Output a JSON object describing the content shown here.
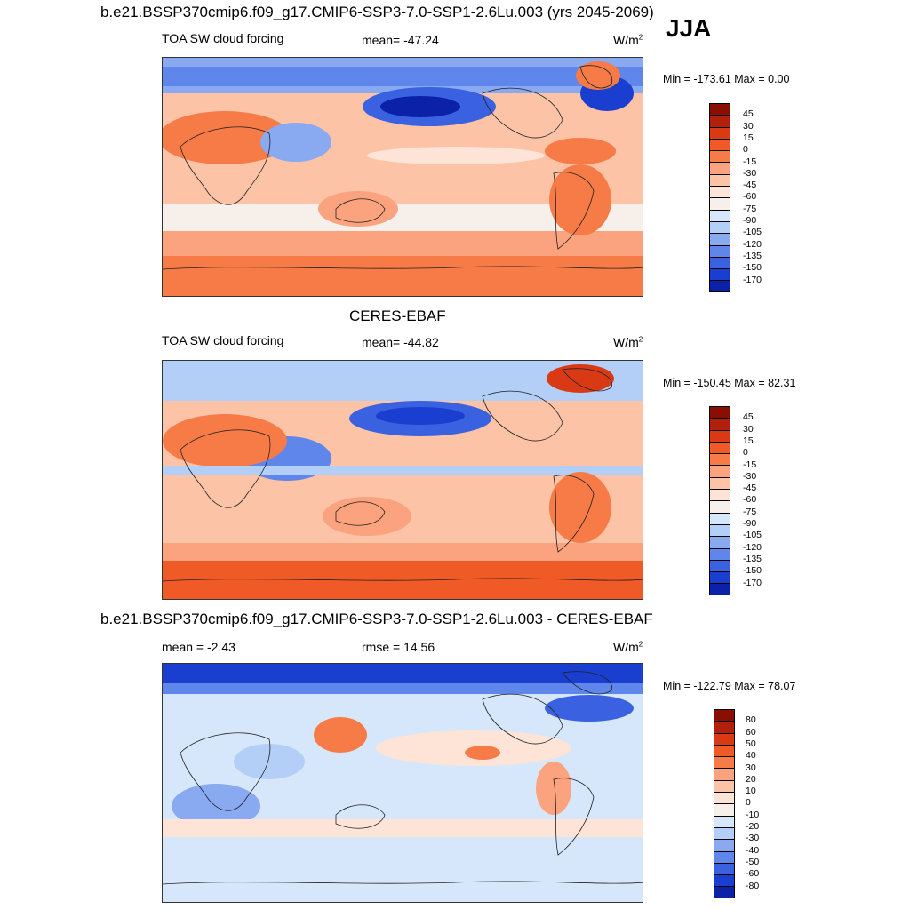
{
  "page": {
    "title_top": "b.e21.BSSP370cmip6.f09_g17.CMIP6-SSP3-7.0-SSP1-2.6Lu.003 (yrs 2045-2069)",
    "season": "JJA",
    "title_obs": "CERES-EBAF",
    "title_diff": "b.e21.BSSP370cmip6.f09_g17.CMIP6-SSP3-7.0-SSP1-2.6Lu.003 - CERES-EBAF"
  },
  "panels": [
    {
      "id": "model",
      "left_label": "TOA SW cloud forcing",
      "center_label": "mean= -47.24",
      "units": "W/m",
      "units_sup": "2",
      "minmax": "Min = -173.61 Max =   0.00"
    },
    {
      "id": "obs",
      "left_label": "TOA SW cloud forcing",
      "center_label": "mean= -44.82",
      "units": "W/m",
      "units_sup": "2",
      "minmax": "Min = -150.45 Max =  82.31"
    },
    {
      "id": "diff",
      "left_label": "mean =  -2.43",
      "center_label": "rmse =  14.56",
      "units": "W/m",
      "units_sup": "2",
      "minmax": "Min = -122.79 Max =  78.07"
    }
  ],
  "colorbars": {
    "field": {
      "labels": [
        "45",
        "30",
        "15",
        "0",
        "-15",
        "-30",
        "-45",
        "-60",
        "-75",
        "-90",
        "-105",
        "-120",
        "-135",
        "-150",
        "-170"
      ],
      "colors": [
        "#8b0e03",
        "#b2200b",
        "#d93a14",
        "#f05a26",
        "#f77b47",
        "#fba27e",
        "#fcc3a7",
        "#fde4d6",
        "#f6efea",
        "#d7e7fb",
        "#b3cef7",
        "#89a9f1",
        "#5f86ea",
        "#3a62e0",
        "#1a3ecf",
        "#0b21a8"
      ]
    },
    "diff": {
      "labels": [
        "80",
        "60",
        "50",
        "40",
        "30",
        "20",
        "10",
        "0",
        "-10",
        "-20",
        "-30",
        "-40",
        "-50",
        "-60",
        "-80"
      ],
      "colors": [
        "#8b0e03",
        "#b2200b",
        "#d93a14",
        "#f05a26",
        "#f77b47",
        "#fba27e",
        "#fcc3a7",
        "#fde4d6",
        "#f6efea",
        "#d7e7fb",
        "#b3cef7",
        "#89a9f1",
        "#5f86ea",
        "#3a62e0",
        "#1a3ecf",
        "#0b21a8"
      ]
    }
  }
}
